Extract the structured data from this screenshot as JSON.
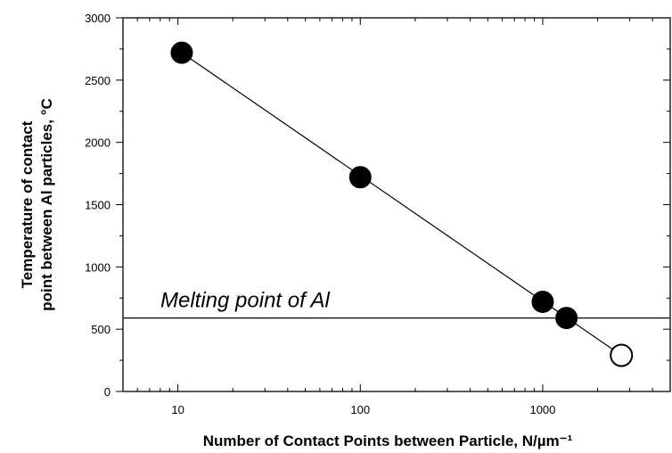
{
  "chart_data": {
    "type": "scatter",
    "x_scale": "log",
    "xlim": [
      5,
      5000
    ],
    "ylim": [
      0,
      3000
    ],
    "x_ticks": [
      10,
      100,
      1000
    ],
    "x_tick_labels": [
      "10",
      "100",
      "1000"
    ],
    "y_ticks": [
      0,
      500,
      1000,
      1500,
      2000,
      2500,
      3000
    ],
    "y_tick_labels": [
      "0",
      "500",
      "1000",
      "1500",
      "2000",
      "2500",
      "3000"
    ],
    "xlabel": "Number of Contact Points between Particle, N/µm⁻¹",
    "ylabel_line1": "Temperature of contact",
    "ylabel_line2": "point between Al particles, °C",
    "grid": false,
    "series": [
      {
        "marker": "filled-circle",
        "color": "#000000",
        "points": [
          {
            "x": 10.5,
            "y": 2720
          },
          {
            "x": 100,
            "y": 1720
          },
          {
            "x": 1000,
            "y": 720
          },
          {
            "x": 1350,
            "y": 590
          }
        ]
      },
      {
        "marker": "open-circle",
        "color": "#000000",
        "points": [
          {
            "x": 2700,
            "y": 290
          }
        ]
      }
    ],
    "fit_line": {
      "x": [
        10.5,
        2700
      ],
      "y": [
        2720,
        290
      ]
    },
    "reference_line": {
      "y": 590,
      "label": "Melting point of Al"
    }
  }
}
